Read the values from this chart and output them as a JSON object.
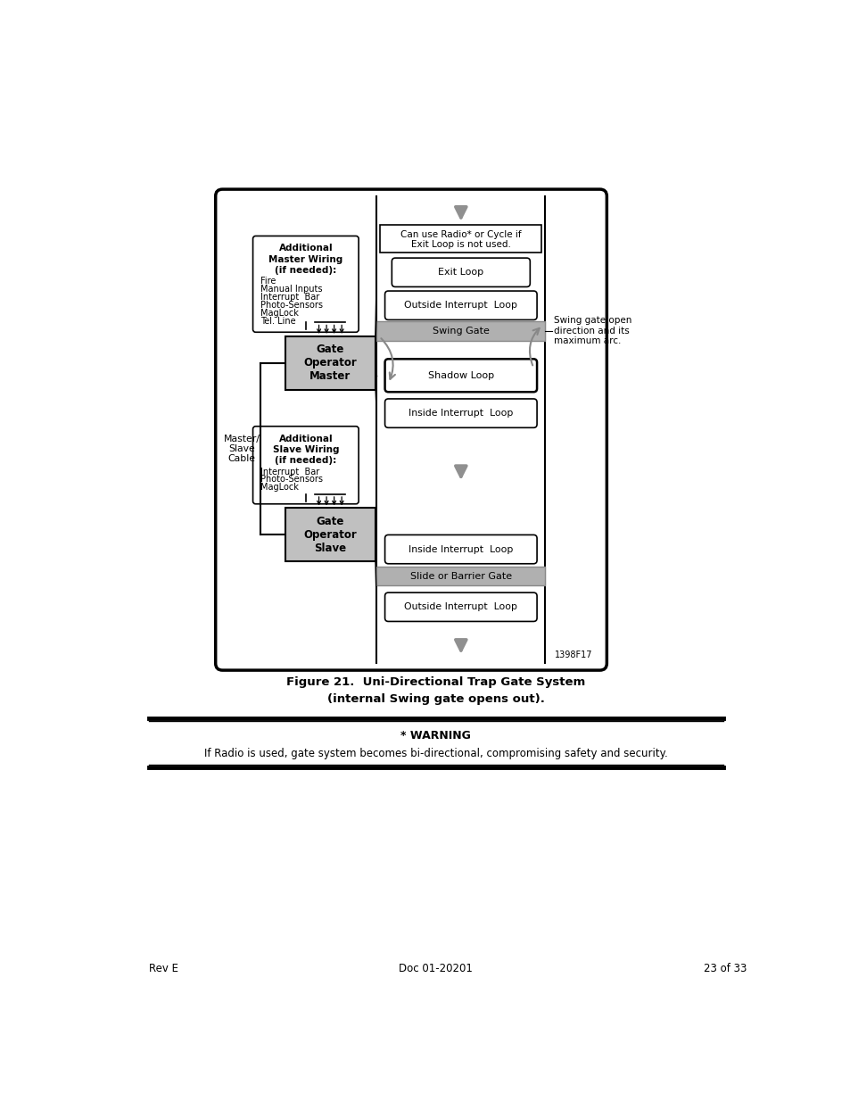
{
  "page_width": 9.54,
  "page_height": 12.35,
  "bg_color": "#ffffff",
  "figure_caption_line1": "Figure 21.  Uni-Directional Trap Gate System",
  "figure_caption_line2": "(internal Swing gate opens out).",
  "warning_title": "* WARNING",
  "warning_body": "If Radio is used, gate system becomes bi-directional, compromising safety and security.",
  "footer_left": "Rev E",
  "footer_center": "Doc 01-20201",
  "footer_right": "23 of 33",
  "diagram_ref": "1398F17",
  "gray_color": "#b0b0b0",
  "gate_box_color": "#c0c0c0",
  "arrow_gray": "#909090"
}
